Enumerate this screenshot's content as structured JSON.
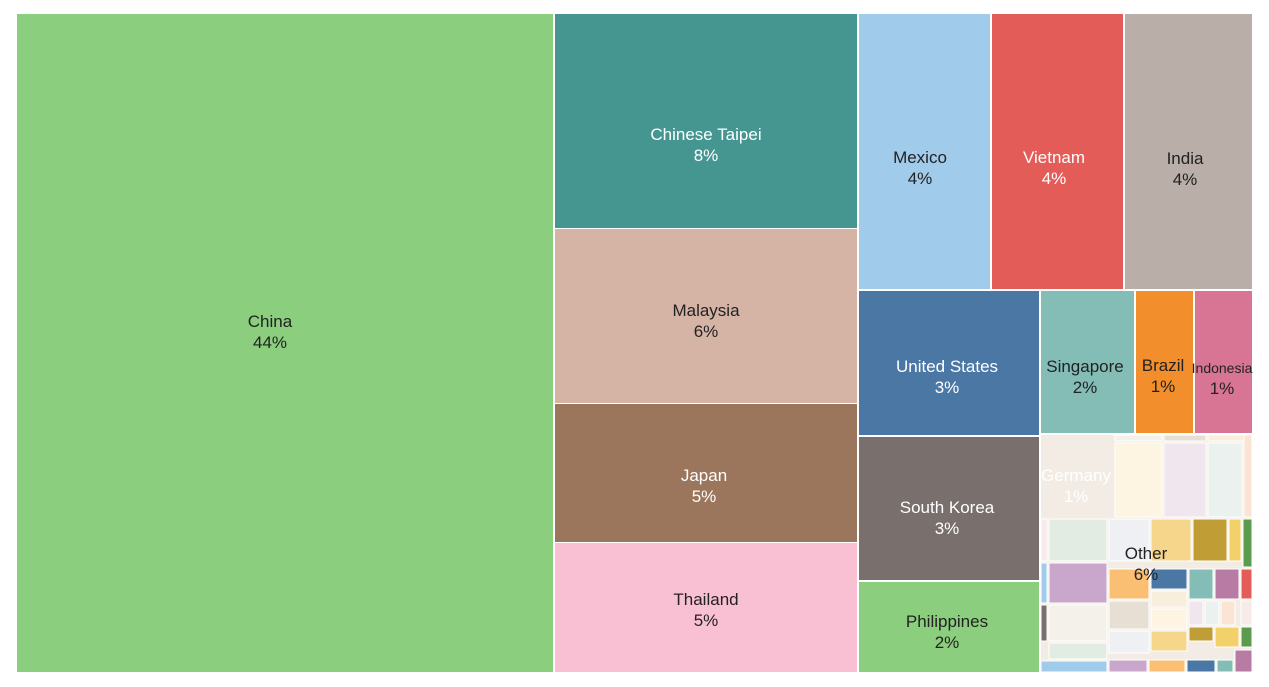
{
  "chart_data": {
    "type": "treemap",
    "tiles": [
      {
        "label": "China",
        "value_label": "44%",
        "value": 44,
        "color": "#8ace7e",
        "text_color": "#222222"
      },
      {
        "label": "Chinese Taipei",
        "value_label": "8%",
        "value": 8,
        "color": "#459691",
        "text_color": "#ffffff"
      },
      {
        "label": "Malaysia",
        "value_label": "6%",
        "value": 6,
        "color": "#d5b4a6",
        "text_color": "#222222"
      },
      {
        "label": "Japan",
        "value_label": "5%",
        "value": 5,
        "color": "#9b755c",
        "text_color": "#ffffff"
      },
      {
        "label": "Thailand",
        "value_label": "5%",
        "value": 5,
        "color": "#f9c0d4",
        "text_color": "#222222"
      },
      {
        "label": "Mexico",
        "value_label": "4%",
        "value": 4,
        "color": "#a0cbea",
        "text_color": "#222222"
      },
      {
        "label": "Vietnam",
        "value_label": "4%",
        "value": 4,
        "color": "#e45c58",
        "text_color": "#ffffff"
      },
      {
        "label": "India",
        "value_label": "4%",
        "value": 4,
        "color": "#b9aea8",
        "text_color": "#222222"
      },
      {
        "label": "United States",
        "value_label": "3%",
        "value": 3,
        "color": "#4b77a5",
        "text_color": "#ffffff"
      },
      {
        "label": "Singapore",
        "value_label": "2%",
        "value": 2,
        "color": "#84bcb6",
        "text_color": "#222222"
      },
      {
        "label": "Brazil",
        "value_label": "1%",
        "value": 1,
        "color": "#f28e2c",
        "text_color": "#222222"
      },
      {
        "label": "Indonesia",
        "value_label": "1%",
        "value": 1,
        "color": "#d87594",
        "text_color": "#222222"
      },
      {
        "label": "South Korea",
        "value_label": "3%",
        "value": 3,
        "color": "#796f6c",
        "text_color": "#ffffff"
      },
      {
        "label": "Philippines",
        "value_label": "2%",
        "value": 2,
        "color": "#8ace7e",
        "text_color": "#222222"
      },
      {
        "label": "Germany",
        "value_label": "1%",
        "value": 1,
        "color": "#e45c58",
        "text_color": "#ffffff"
      },
      {
        "label": "Other",
        "value_label": "6%",
        "value": 6,
        "color": "#f3ece4",
        "text_color": "#222222"
      }
    ],
    "other_segment_colors": [
      "#f4f0ea",
      "#e7dfd3",
      "#f7eedb",
      "#fdf5e2",
      "#f0e6ee",
      "#eaf1ee",
      "#fbe4d4",
      "#f9eaea",
      "#e3ece2",
      "#eef0f4",
      "#f6d68b",
      "#c19e35",
      "#f3d16a",
      "#5a9b4e",
      "#a0cbea",
      "#c9a6cb",
      "#fbbf73",
      "#4b77a5",
      "#84bcb6",
      "#b77ba4",
      "#e45c58",
      "#796f6c"
    ]
  }
}
